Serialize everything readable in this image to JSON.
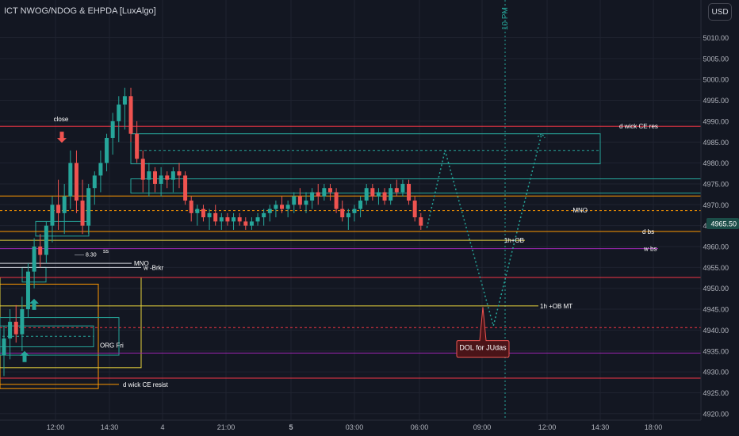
{
  "indicator_title": "ICT NWOG/NDOG & EHPDA [LuxAlgo]",
  "currency": "USD",
  "colors": {
    "background": "#131722",
    "grid": "#1f2330",
    "axis_text": "#b2b5be",
    "bull": "#26a69a",
    "bear": "#ef5350",
    "red_line": "#f23645",
    "orange_line": "#ff9800",
    "yellow_line": "#e6d23c",
    "purple_line": "#9c27b0",
    "teal_box": "#26a69a",
    "projection": "#26a69a",
    "price_tag": "#1b4d48",
    "annotation_text": "#ffffff"
  },
  "chart_data": {
    "type": "candlestick",
    "ylim": [
      4918,
      5016
    ],
    "y_ticks": [
      "5010.00",
      "5005.00",
      "5000.00",
      "4995.00",
      "4990.00",
      "4985.00",
      "4980.00",
      "4975.00",
      "4970.00",
      "4965.00",
      "4960.00",
      "4955.00",
      "4950.00",
      "4945.00",
      "4940.00",
      "4935.00",
      "4930.00",
      "4925.00",
      "4920.00"
    ],
    "x_ticks": [
      "12:00",
      "14:30",
      "4",
      "21:00",
      "5",
      "03:00",
      "06:00",
      "09:00",
      "12:00",
      "14:30",
      "18:00"
    ],
    "x_tick_bold": [
      false,
      false,
      false,
      false,
      true,
      false,
      false,
      false,
      false,
      false,
      false
    ],
    "current_price": "4965.50",
    "candles": [
      {
        "o": 4934,
        "h": 4941,
        "l": 4929,
        "c": 4938
      },
      {
        "o": 4938,
        "h": 4945,
        "l": 4933,
        "c": 4942
      },
      {
        "o": 4942,
        "h": 4946,
        "l": 4937,
        "c": 4939
      },
      {
        "o": 4939,
        "h": 4948,
        "l": 4935,
        "c": 4945
      },
      {
        "o": 4945,
        "h": 4956,
        "l": 4943,
        "c": 4954
      },
      {
        "o": 4954,
        "h": 4962,
        "l": 4950,
        "c": 4960
      },
      {
        "o": 4960,
        "h": 4963,
        "l": 4955,
        "c": 4958
      },
      {
        "o": 4958,
        "h": 4966,
        "l": 4956,
        "c": 4965
      },
      {
        "o": 4965,
        "h": 4972,
        "l": 4961,
        "c": 4970
      },
      {
        "o": 4970,
        "h": 4976,
        "l": 4964,
        "c": 4968
      },
      {
        "o": 4968,
        "h": 4975,
        "l": 4963,
        "c": 4972
      },
      {
        "o": 4972,
        "h": 4983,
        "l": 4969,
        "c": 4980
      },
      {
        "o": 4980,
        "h": 4983,
        "l": 4968,
        "c": 4971
      },
      {
        "o": 4971,
        "h": 4976,
        "l": 4963,
        "c": 4965
      },
      {
        "o": 4965,
        "h": 4975,
        "l": 4963,
        "c": 4974
      },
      {
        "o": 4974,
        "h": 4978,
        "l": 4970,
        "c": 4977
      },
      {
        "o": 4977,
        "h": 4983,
        "l": 4973,
        "c": 4980
      },
      {
        "o": 4980,
        "h": 4987,
        "l": 4978,
        "c": 4986
      },
      {
        "o": 4986,
        "h": 4992,
        "l": 4982,
        "c": 4990
      },
      {
        "o": 4990,
        "h": 4996,
        "l": 4985,
        "c": 4994
      },
      {
        "o": 4994,
        "h": 4998,
        "l": 4988,
        "c": 4996
      },
      {
        "o": 4996,
        "h": 4998,
        "l": 4985,
        "c": 4987
      },
      {
        "o": 4987,
        "h": 4990,
        "l": 4980,
        "c": 4981
      },
      {
        "o": 4981,
        "h": 4983,
        "l": 4973,
        "c": 4976
      },
      {
        "o": 4976,
        "h": 4980,
        "l": 4972,
        "c": 4978
      },
      {
        "o": 4978,
        "h": 4979,
        "l": 4973,
        "c": 4975
      },
      {
        "o": 4975,
        "h": 4979,
        "l": 4972,
        "c": 4977
      },
      {
        "o": 4977,
        "h": 4978,
        "l": 4974,
        "c": 4976
      },
      {
        "o": 4976,
        "h": 4979,
        "l": 4973,
        "c": 4978
      },
      {
        "o": 4978,
        "h": 4980,
        "l": 4974,
        "c": 4977
      },
      {
        "o": 4977,
        "h": 4978,
        "l": 4970,
        "c": 4971
      },
      {
        "o": 4971,
        "h": 4972,
        "l": 4966,
        "c": 4968
      },
      {
        "o": 4968,
        "h": 4970,
        "l": 4965,
        "c": 4969
      },
      {
        "o": 4969,
        "h": 4970,
        "l": 4966,
        "c": 4967
      },
      {
        "o": 4967,
        "h": 4969,
        "l": 4964,
        "c": 4968
      },
      {
        "o": 4968,
        "h": 4970,
        "l": 4965,
        "c": 4966
      },
      {
        "o": 4966,
        "h": 4968,
        "l": 4964,
        "c": 4967
      },
      {
        "o": 4967,
        "h": 4968,
        "l": 4965,
        "c": 4966
      },
      {
        "o": 4966,
        "h": 4968,
        "l": 4964,
        "c": 4967
      },
      {
        "o": 4967,
        "h": 4968,
        "l": 4965,
        "c": 4966
      },
      {
        "o": 4966,
        "h": 4967,
        "l": 4964,
        "c": 4965
      },
      {
        "o": 4965,
        "h": 4967,
        "l": 4964,
        "c": 4966
      },
      {
        "o": 4966,
        "h": 4968,
        "l": 4965,
        "c": 4967
      },
      {
        "o": 4967,
        "h": 4969,
        "l": 4965,
        "c": 4968
      },
      {
        "o": 4968,
        "h": 4970,
        "l": 4966,
        "c": 4969
      },
      {
        "o": 4969,
        "h": 4971,
        "l": 4967,
        "c": 4970
      },
      {
        "o": 4970,
        "h": 4972,
        "l": 4968,
        "c": 4969
      },
      {
        "o": 4969,
        "h": 4971,
        "l": 4967,
        "c": 4970
      },
      {
        "o": 4970,
        "h": 4973,
        "l": 4968,
        "c": 4972
      },
      {
        "o": 4972,
        "h": 4974,
        "l": 4969,
        "c": 4970
      },
      {
        "o": 4970,
        "h": 4973,
        "l": 4968,
        "c": 4971
      },
      {
        "o": 4971,
        "h": 4974,
        "l": 4969,
        "c": 4973
      },
      {
        "o": 4973,
        "h": 4975,
        "l": 4970,
        "c": 4972
      },
      {
        "o": 4972,
        "h": 4975,
        "l": 4971,
        "c": 4974
      },
      {
        "o": 4974,
        "h": 4975,
        "l": 4971,
        "c": 4973
      },
      {
        "o": 4973,
        "h": 4974,
        "l": 4968,
        "c": 4969
      },
      {
        "o": 4969,
        "h": 4971,
        "l": 4966,
        "c": 4967
      },
      {
        "o": 4967,
        "h": 4969,
        "l": 4964,
        "c": 4968
      },
      {
        "o": 4968,
        "h": 4970,
        "l": 4966,
        "c": 4969
      },
      {
        "o": 4969,
        "h": 4972,
        "l": 4967,
        "c": 4971
      },
      {
        "o": 4971,
        "h": 4975,
        "l": 4970,
        "c": 4974
      },
      {
        "o": 4974,
        "h": 4975,
        "l": 4971,
        "c": 4972
      },
      {
        "o": 4972,
        "h": 4974,
        "l": 4970,
        "c": 4973
      },
      {
        "o": 4973,
        "h": 4974,
        "l": 4970,
        "c": 4971
      },
      {
        "o": 4971,
        "h": 4975,
        "l": 4970,
        "c": 4974
      },
      {
        "o": 4974,
        "h": 4976,
        "l": 4972,
        "c": 4973
      },
      {
        "o": 4973,
        "h": 4976,
        "l": 4972,
        "c": 4975
      },
      {
        "o": 4975,
        "h": 4976,
        "l": 4970,
        "c": 4971
      },
      {
        "o": 4971,
        "h": 4972,
        "l": 4966,
        "c": 4967
      },
      {
        "o": 4967,
        "h": 4968,
        "l": 4964,
        "c": 4965
      }
    ],
    "horizontal_levels": [
      {
        "price": 4988.8,
        "color": "red",
        "label": "d wick CE res"
      },
      {
        "price": 4972.1,
        "color": "orange",
        "label": ""
      },
      {
        "price": 4968.6,
        "color": "orange_dashed",
        "label": "MNO"
      },
      {
        "price": 4963.6,
        "color": "orange",
        "label": "d bs"
      },
      {
        "price": 4961.5,
        "color": "yellow",
        "label": "1h+OB"
      },
      {
        "price": 4959.5,
        "color": "purple",
        "label": "w bs"
      },
      {
        "price": 4956.0,
        "color": "white",
        "label": "MNO"
      },
      {
        "price": 4955.0,
        "color": "white",
        "label": "w -Brkr"
      },
      {
        "price": 4952.6,
        "color": "red",
        "label": ""
      },
      {
        "price": 4945.8,
        "color": "yellow",
        "label": "1h +OB MT"
      },
      {
        "price": 4940.6,
        "color": "red_dashed",
        "label": ""
      },
      {
        "price": 4934.5,
        "color": "purple",
        "label": ""
      },
      {
        "price": 4928.5,
        "color": "red",
        "label": ""
      },
      {
        "price": 4927.0,
        "color": "orange",
        "label": "d wick CE resist"
      }
    ],
    "text_labels": {
      "close": "close",
      "ss": "ss",
      "t830": "8.30",
      "org_fri": "ORG Fri",
      "dol": "DOL for JUdas",
      "time_marker": "10 PM"
    },
    "projection": [
      {
        "bar": 70,
        "price": 4964.5
      },
      {
        "bar": 73,
        "price": 4983
      },
      {
        "bar": 81,
        "price": 4941
      },
      {
        "bar": 89,
        "price": 4987
      }
    ]
  }
}
